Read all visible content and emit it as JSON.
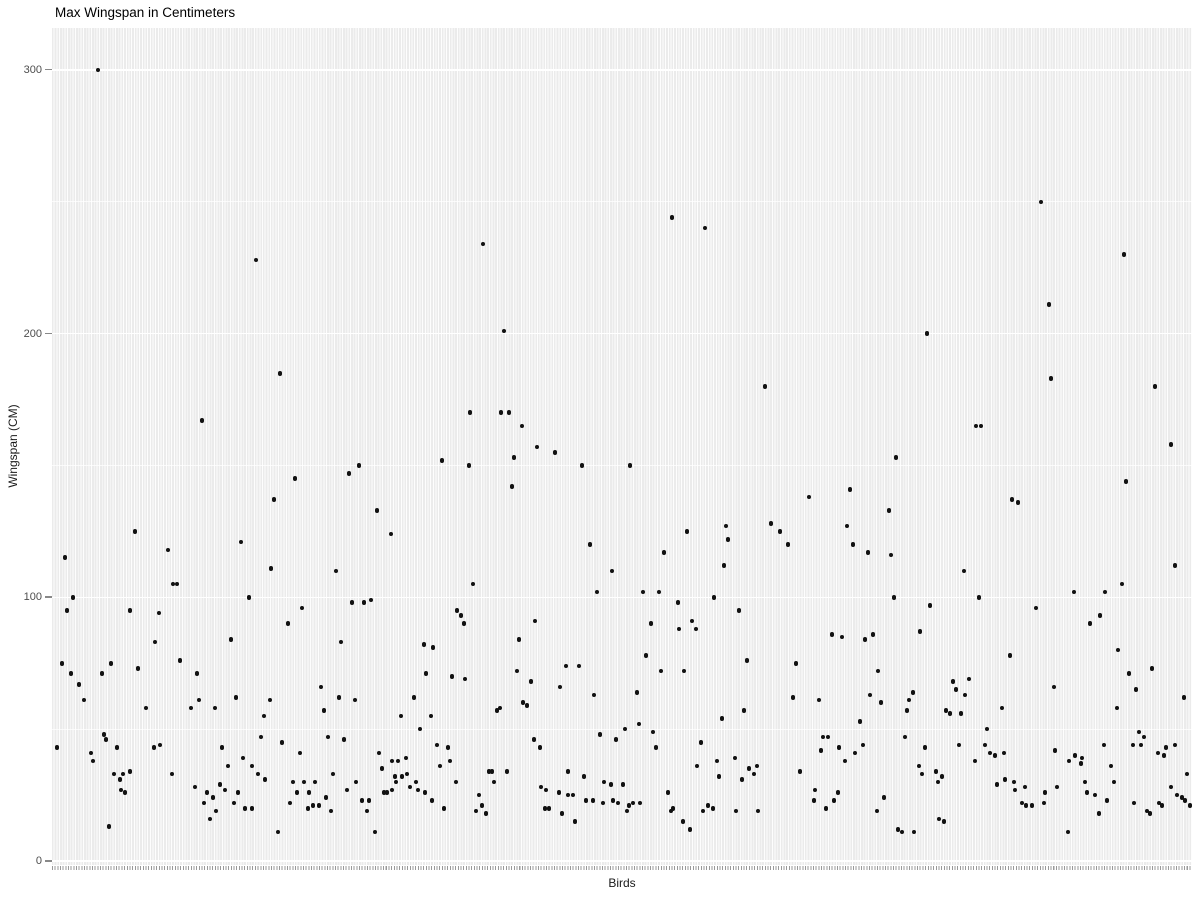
{
  "title": "Max Wingspan in Centimeters",
  "axes": {
    "x_label": "Birds",
    "y_label": "Wingspan (CM)",
    "y_major_ticks": [
      0,
      100,
      200,
      300
    ],
    "y_minor_gridlines": [
      50,
      150,
      250
    ]
  },
  "colors": {
    "panel_bg": "#ebebeb",
    "gridline": "#ffffff",
    "point": "#111111",
    "tick_label": "#4d4d4d",
    "axis_label": "#1a1a1a",
    "title": "#000000"
  },
  "chart_data": {
    "type": "scatter",
    "title": "Max Wingspan in Centimeters",
    "xlabel": "Birds",
    "ylabel": "Wingspan (CM)",
    "ylim": [
      -2,
      315
    ],
    "grid": "gray panel, white major/minor gridlines, one vertical gridline per bird category (no x tick labels)",
    "points_format": [
      "x_px",
      "wingspan_cm"
    ],
    "points": [
      [
        98,
        300
      ],
      [
        256,
        228
      ],
      [
        280,
        185
      ],
      [
        202,
        167
      ],
      [
        483,
        234
      ],
      [
        504,
        201
      ],
      [
        470,
        170
      ],
      [
        501,
        170
      ],
      [
        509,
        170
      ],
      [
        522,
        165
      ],
      [
        537,
        157
      ],
      [
        672,
        244
      ],
      [
        705,
        240
      ],
      [
        765,
        180
      ],
      [
        927,
        200
      ],
      [
        976,
        165
      ],
      [
        981,
        165
      ],
      [
        1041,
        250
      ],
      [
        1049,
        211
      ],
      [
        1051,
        183
      ],
      [
        1124,
        230
      ],
      [
        1155,
        180
      ],
      [
        1171,
        158
      ],
      [
        65,
        115
      ],
      [
        67,
        95
      ],
      [
        73,
        100
      ],
      [
        130,
        95
      ],
      [
        135,
        125
      ],
      [
        155,
        83
      ],
      [
        159,
        94
      ],
      [
        168,
        118
      ],
      [
        173,
        105
      ],
      [
        177,
        105
      ],
      [
        231,
        84
      ],
      [
        241,
        121
      ],
      [
        249,
        100
      ],
      [
        271,
        111
      ],
      [
        274,
        137
      ],
      [
        288,
        90
      ],
      [
        295,
        145
      ],
      [
        302,
        96
      ],
      [
        336,
        110
      ],
      [
        341,
        83
      ],
      [
        349,
        147
      ],
      [
        359,
        150
      ],
      [
        352,
        98
      ],
      [
        364,
        98
      ],
      [
        371,
        99
      ],
      [
        377,
        133
      ],
      [
        391,
        124
      ],
      [
        424,
        82
      ],
      [
        62,
        75
      ],
      [
        71,
        71
      ],
      [
        79,
        67
      ],
      [
        84,
        61
      ],
      [
        102,
        71
      ],
      [
        111,
        75
      ],
      [
        138,
        73
      ],
      [
        146,
        58
      ],
      [
        180,
        76
      ],
      [
        191,
        58
      ],
      [
        197,
        71
      ],
      [
        199,
        61
      ],
      [
        215,
        58
      ],
      [
        236,
        62
      ],
      [
        264,
        55
      ],
      [
        270,
        61
      ],
      [
        321,
        66
      ],
      [
        324,
        57
      ],
      [
        339,
        62
      ],
      [
        355,
        61
      ],
      [
        401,
        55
      ],
      [
        414,
        62
      ],
      [
        420,
        50
      ],
      [
        426,
        71
      ],
      [
        431,
        55
      ],
      [
        57,
        43
      ],
      [
        91,
        41
      ],
      [
        93,
        38
      ],
      [
        104,
        48
      ],
      [
        106,
        46
      ],
      [
        117,
        43
      ],
      [
        154,
        43
      ],
      [
        160,
        44
      ],
      [
        222,
        43
      ],
      [
        228,
        36
      ],
      [
        243,
        39
      ],
      [
        252,
        36
      ],
      [
        261,
        47
      ],
      [
        282,
        45
      ],
      [
        300,
        41
      ],
      [
        328,
        47
      ],
      [
        344,
        46
      ],
      [
        379,
        41
      ],
      [
        382,
        35
      ],
      [
        392,
        38
      ],
      [
        398,
        38
      ],
      [
        406,
        39
      ],
      [
        407,
        33
      ],
      [
        395,
        32
      ],
      [
        114,
        33
      ],
      [
        120,
        31
      ],
      [
        123,
        33
      ],
      [
        130,
        34
      ],
      [
        121,
        27
      ],
      [
        125,
        26
      ],
      [
        172,
        33
      ],
      [
        195,
        28
      ],
      [
        204,
        22
      ],
      [
        207,
        26
      ],
      [
        210,
        16
      ],
      [
        213,
        24
      ],
      [
        216,
        19
      ],
      [
        220,
        29
      ],
      [
        225,
        27
      ],
      [
        234,
        22
      ],
      [
        238,
        26
      ],
      [
        245,
        20
      ],
      [
        252,
        20
      ],
      [
        258,
        33
      ],
      [
        265,
        31
      ],
      [
        290,
        22
      ],
      [
        293,
        30
      ],
      [
        297,
        26
      ],
      [
        304,
        30
      ],
      [
        308,
        20
      ],
      [
        309,
        26
      ],
      [
        313,
        21
      ],
      [
        315,
        30
      ],
      [
        319,
        21
      ],
      [
        326,
        24
      ],
      [
        331,
        19
      ],
      [
        333,
        33
      ],
      [
        347,
        27
      ],
      [
        356,
        30
      ],
      [
        362,
        23
      ],
      [
        367,
        19
      ],
      [
        369,
        23
      ],
      [
        384,
        26
      ],
      [
        387,
        26
      ],
      [
        392,
        27
      ],
      [
        396,
        30
      ],
      [
        402,
        32
      ],
      [
        410,
        28
      ],
      [
        416,
        30
      ],
      [
        418,
        27
      ],
      [
        425,
        26
      ],
      [
        432,
        23
      ],
      [
        109,
        13
      ],
      [
        278,
        11
      ],
      [
        375,
        11
      ],
      [
        442,
        152
      ],
      [
        469,
        150
      ],
      [
        514,
        153
      ],
      [
        555,
        155
      ],
      [
        582,
        150
      ],
      [
        630,
        150
      ],
      [
        512,
        142
      ],
      [
        809,
        138
      ],
      [
        726,
        127
      ],
      [
        687,
        125
      ],
      [
        771,
        128
      ],
      [
        780,
        125
      ],
      [
        728,
        122
      ],
      [
        788,
        120
      ],
      [
        590,
        120
      ],
      [
        664,
        117
      ],
      [
        724,
        112
      ],
      [
        612,
        110
      ],
      [
        473,
        105
      ],
      [
        597,
        102
      ],
      [
        643,
        102
      ],
      [
        659,
        102
      ],
      [
        714,
        100
      ],
      [
        678,
        98
      ],
      [
        739,
        95
      ],
      [
        457,
        95
      ],
      [
        461,
        93
      ],
      [
        464,
        90
      ],
      [
        535,
        91
      ],
      [
        651,
        90
      ],
      [
        679,
        88
      ],
      [
        692,
        91
      ],
      [
        696,
        88
      ],
      [
        519,
        84
      ],
      [
        433,
        81
      ],
      [
        646,
        78
      ],
      [
        452,
        70
      ],
      [
        465,
        69
      ],
      [
        517,
        72
      ],
      [
        531,
        68
      ],
      [
        566,
        74
      ],
      [
        579,
        74
      ],
      [
        560,
        66
      ],
      [
        594,
        63
      ],
      [
        523,
        60
      ],
      [
        527,
        59
      ],
      [
        497,
        57
      ],
      [
        500,
        58
      ],
      [
        747,
        76
      ],
      [
        796,
        75
      ],
      [
        684,
        72
      ],
      [
        661,
        72
      ],
      [
        637,
        64
      ],
      [
        793,
        62
      ],
      [
        722,
        54
      ],
      [
        744,
        57
      ],
      [
        639,
        52
      ],
      [
        625,
        50
      ],
      [
        653,
        49
      ],
      [
        600,
        48
      ],
      [
        616,
        46
      ],
      [
        534,
        46
      ],
      [
        540,
        43
      ],
      [
        437,
        44
      ],
      [
        448,
        43
      ],
      [
        440,
        36
      ],
      [
        450,
        38
      ],
      [
        456,
        30
      ],
      [
        479,
        25
      ],
      [
        482,
        21
      ],
      [
        476,
        19
      ],
      [
        486,
        18
      ],
      [
        489,
        34
      ],
      [
        492,
        34
      ],
      [
        494,
        30
      ],
      [
        507,
        34
      ],
      [
        444,
        20
      ],
      [
        701,
        45
      ],
      [
        656,
        43
      ],
      [
        717,
        38
      ],
      [
        735,
        39
      ],
      [
        697,
        36
      ],
      [
        719,
        32
      ],
      [
        749,
        35
      ],
      [
        757,
        36
      ],
      [
        754,
        33
      ],
      [
        742,
        31
      ],
      [
        800,
        34
      ],
      [
        568,
        34
      ],
      [
        584,
        32
      ],
      [
        604,
        30
      ],
      [
        611,
        29
      ],
      [
        623,
        29
      ],
      [
        541,
        28
      ],
      [
        546,
        27
      ],
      [
        559,
        26
      ],
      [
        568,
        25
      ],
      [
        573,
        25
      ],
      [
        586,
        23
      ],
      [
        593,
        23
      ],
      [
        603,
        22
      ],
      [
        613,
        23
      ],
      [
        618,
        22
      ],
      [
        629,
        21
      ],
      [
        633,
        22
      ],
      [
        640,
        22
      ],
      [
        545,
        20
      ],
      [
        549,
        20
      ],
      [
        562,
        18
      ],
      [
        575,
        15
      ],
      [
        627,
        19
      ],
      [
        668,
        26
      ],
      [
        671,
        19
      ],
      [
        673,
        20
      ],
      [
        683,
        15
      ],
      [
        690,
        12
      ],
      [
        703,
        19
      ],
      [
        708,
        21
      ],
      [
        713,
        20
      ],
      [
        736,
        19
      ],
      [
        758,
        19
      ],
      [
        896,
        153
      ],
      [
        850,
        141
      ],
      [
        1012,
        137
      ],
      [
        1018,
        136
      ],
      [
        889,
        133
      ],
      [
        1126,
        144
      ],
      [
        847,
        127
      ],
      [
        853,
        120
      ],
      [
        868,
        117
      ],
      [
        891,
        116
      ],
      [
        964,
        110
      ],
      [
        1175,
        112
      ],
      [
        1122,
        105
      ],
      [
        1074,
        102
      ],
      [
        1105,
        102
      ],
      [
        894,
        100
      ],
      [
        979,
        100
      ],
      [
        930,
        97
      ],
      [
        1036,
        96
      ],
      [
        1100,
        93
      ],
      [
        1090,
        90
      ],
      [
        832,
        86
      ],
      [
        842,
        85
      ],
      [
        865,
        84
      ],
      [
        873,
        86
      ],
      [
        920,
        87
      ],
      [
        1118,
        80
      ],
      [
        1010,
        78
      ],
      [
        878,
        72
      ],
      [
        1152,
        73
      ],
      [
        1129,
        71
      ],
      [
        953,
        68
      ],
      [
        969,
        69
      ],
      [
        956,
        65
      ],
      [
        1054,
        66
      ],
      [
        1136,
        65
      ],
      [
        819,
        61
      ],
      [
        870,
        63
      ],
      [
        881,
        60
      ],
      [
        913,
        64
      ],
      [
        909,
        61
      ],
      [
        907,
        57
      ],
      [
        965,
        63
      ],
      [
        946,
        57
      ],
      [
        950,
        56
      ],
      [
        961,
        56
      ],
      [
        1002,
        58
      ],
      [
        1117,
        58
      ],
      [
        860,
        53
      ],
      [
        987,
        50
      ],
      [
        1184,
        62
      ],
      [
        823,
        47
      ],
      [
        828,
        47
      ],
      [
        821,
        42
      ],
      [
        839,
        43
      ],
      [
        845,
        38
      ],
      [
        855,
        41
      ],
      [
        863,
        44
      ],
      [
        905,
        47
      ],
      [
        925,
        43
      ],
      [
        919,
        36
      ],
      [
        922,
        33
      ],
      [
        936,
        34
      ],
      [
        942,
        32
      ],
      [
        938,
        30
      ],
      [
        959,
        44
      ],
      [
        975,
        38
      ],
      [
        985,
        44
      ],
      [
        990,
        41
      ],
      [
        995,
        40
      ],
      [
        1004,
        41
      ],
      [
        1005,
        31
      ],
      [
        1014,
        30
      ],
      [
        997,
        29
      ],
      [
        1015,
        27
      ],
      [
        1025,
        28
      ],
      [
        1022,
        22
      ],
      [
        1026,
        21
      ],
      [
        1032,
        21
      ],
      [
        1044,
        22
      ],
      [
        1045,
        26
      ],
      [
        1057,
        28
      ],
      [
        1055,
        42
      ],
      [
        1069,
        38
      ],
      [
        1075,
        40
      ],
      [
        1082,
        39
      ],
      [
        1081,
        37
      ],
      [
        1085,
        30
      ],
      [
        1087,
        26
      ],
      [
        1095,
        25
      ],
      [
        1099,
        18
      ],
      [
        1107,
        23
      ],
      [
        1104,
        44
      ],
      [
        1111,
        36
      ],
      [
        1114,
        30
      ],
      [
        1133,
        44
      ],
      [
        1141,
        44
      ],
      [
        1139,
        49
      ],
      [
        1144,
        47
      ],
      [
        1134,
        22
      ],
      [
        1147,
        19
      ],
      [
        1150,
        18
      ],
      [
        1158,
        41
      ],
      [
        1159,
        22
      ],
      [
        1162,
        21
      ],
      [
        1164,
        40
      ],
      [
        1166,
        43
      ],
      [
        1175,
        44
      ],
      [
        1171,
        28
      ],
      [
        1177,
        25
      ],
      [
        1182,
        24
      ],
      [
        1185,
        23
      ],
      [
        1187,
        33
      ],
      [
        1190,
        21
      ],
      [
        877,
        19
      ],
      [
        884,
        24
      ],
      [
        898,
        12
      ],
      [
        902,
        11
      ],
      [
        914,
        11
      ],
      [
        939,
        16
      ],
      [
        944,
        15
      ],
      [
        1068,
        11
      ],
      [
        826,
        20
      ],
      [
        834,
        23
      ],
      [
        838,
        26
      ],
      [
        815,
        27
      ],
      [
        814,
        23
      ]
    ]
  }
}
